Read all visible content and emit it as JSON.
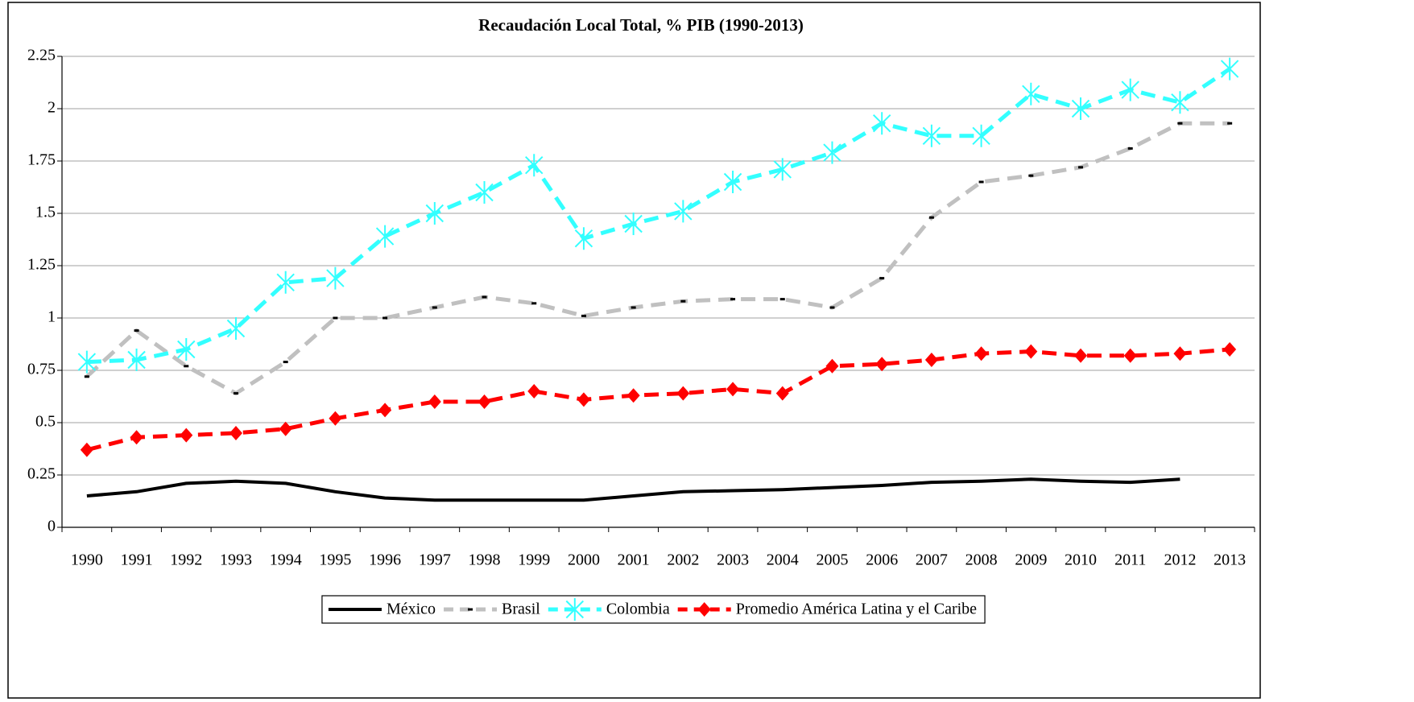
{
  "chart_data": {
    "type": "line",
    "title": "Recaudación Local Total, % PIB (1990-2013)",
    "categories": [
      "1990",
      "1991",
      "1992",
      "1993",
      "1994",
      "1995",
      "1996",
      "1997",
      "1998",
      "1999",
      "2000",
      "2001",
      "2002",
      "2003",
      "2004",
      "2005",
      "2006",
      "2007",
      "2008",
      "2009",
      "2010",
      "2011",
      "2012",
      "2013"
    ],
    "ylim": [
      0,
      2.25
    ],
    "yticks": [
      0,
      0.25,
      0.5,
      0.75,
      1,
      1.25,
      1.5,
      1.75,
      2,
      2.25
    ],
    "grid": true,
    "legend": "bottom",
    "series": [
      {
        "name": "México",
        "color": "#000000",
        "line_style": "solid",
        "marker": "none",
        "values": [
          0.15,
          0.17,
          0.21,
          0.22,
          0.21,
          0.17,
          0.14,
          0.13,
          0.13,
          0.13,
          0.13,
          0.15,
          0.17,
          0.175,
          0.18,
          0.19,
          0.2,
          0.215,
          0.22,
          0.23,
          0.22,
          0.215,
          0.23,
          null
        ]
      },
      {
        "name": "Brasil",
        "color": "#c0c0c0",
        "line_style": "dashed",
        "marker": "dash",
        "values": [
          0.72,
          0.94,
          0.77,
          0.64,
          0.79,
          1.0,
          1.0,
          1.05,
          1.1,
          1.07,
          1.01,
          1.05,
          1.08,
          1.09,
          1.09,
          1.05,
          1.19,
          1.48,
          1.65,
          1.68,
          1.72,
          1.81,
          1.93,
          1.93
        ]
      },
      {
        "name": "Colombia",
        "color": "#33ffff",
        "line_style": "dashed",
        "marker": "star",
        "values": [
          0.79,
          0.8,
          0.85,
          0.95,
          1.17,
          1.19,
          1.39,
          1.5,
          1.6,
          1.73,
          1.38,
          1.45,
          1.51,
          1.65,
          1.71,
          1.79,
          1.93,
          1.87,
          1.87,
          2.07,
          2.0,
          2.09,
          2.03,
          2.19
        ]
      },
      {
        "name": "Promedio América Latina y el Caribe",
        "color": "#ff0000",
        "line_style": "dashed",
        "marker": "diamond",
        "values": [
          0.37,
          0.43,
          0.44,
          0.45,
          0.47,
          0.52,
          0.56,
          0.6,
          0.6,
          0.65,
          0.61,
          0.63,
          0.64,
          0.66,
          0.64,
          0.77,
          0.78,
          0.8,
          0.83,
          0.84,
          0.82,
          0.82,
          0.83,
          0.85
        ]
      }
    ]
  }
}
